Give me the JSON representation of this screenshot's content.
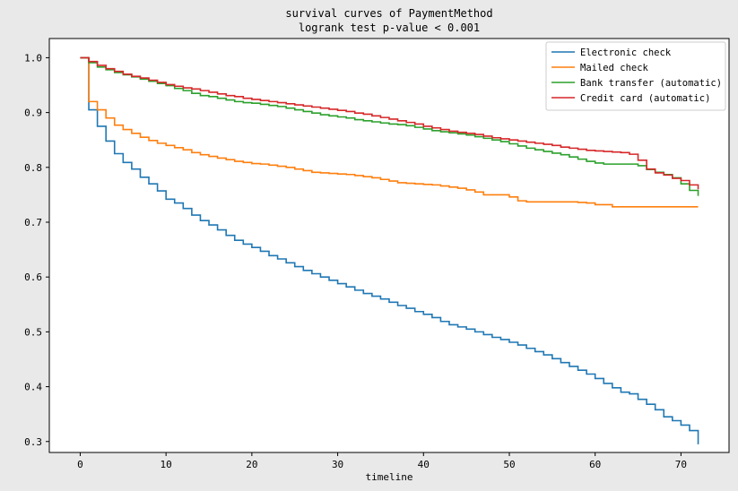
{
  "chart_data": {
    "type": "line",
    "step": true,
    "title": "survival curves of PaymentMethod",
    "subtitle": "logrank test p-value < 0.001",
    "xlabel": "timeline",
    "ylabel": "",
    "xlim": [
      -3.6,
      75.6
    ],
    "ylim": [
      0.28,
      1.035
    ],
    "xticks": [
      0,
      10,
      20,
      30,
      40,
      50,
      60,
      70
    ],
    "yticks": [
      0.3,
      0.4,
      0.5,
      0.6,
      0.7,
      0.8,
      0.9,
      1.0
    ],
    "xtick_labels": [
      "0",
      "10",
      "20",
      "30",
      "40",
      "50",
      "60",
      "70"
    ],
    "ytick_labels": [
      "0.3",
      "0.4",
      "0.5",
      "0.6",
      "0.7",
      "0.8",
      "0.9",
      "1.0"
    ],
    "grid": false,
    "legend_position": "top-right",
    "series": [
      {
        "name": "Electronic check",
        "color": "#1f77b4",
        "x": [
          0,
          1,
          2,
          3,
          4,
          5,
          6,
          7,
          8,
          9,
          10,
          11,
          12,
          13,
          14,
          15,
          16,
          17,
          18,
          19,
          20,
          21,
          22,
          23,
          24,
          25,
          26,
          27,
          28,
          29,
          30,
          31,
          32,
          33,
          34,
          35,
          36,
          37,
          38,
          39,
          40,
          41,
          42,
          43,
          44,
          45,
          46,
          47,
          48,
          49,
          50,
          51,
          52,
          53,
          54,
          55,
          56,
          57,
          58,
          59,
          60,
          61,
          62,
          63,
          64,
          65,
          66,
          67,
          68,
          69,
          70,
          71,
          72
        ],
        "y": [
          1.0,
          0.905,
          0.875,
          0.848,
          0.825,
          0.809,
          0.797,
          0.782,
          0.77,
          0.757,
          0.742,
          0.735,
          0.725,
          0.713,
          0.703,
          0.695,
          0.686,
          0.676,
          0.667,
          0.66,
          0.654,
          0.647,
          0.639,
          0.633,
          0.626,
          0.619,
          0.612,
          0.606,
          0.6,
          0.594,
          0.588,
          0.582,
          0.576,
          0.57,
          0.565,
          0.56,
          0.554,
          0.548,
          0.543,
          0.537,
          0.532,
          0.526,
          0.519,
          0.513,
          0.509,
          0.505,
          0.5,
          0.495,
          0.49,
          0.486,
          0.481,
          0.476,
          0.47,
          0.464,
          0.458,
          0.451,
          0.444,
          0.437,
          0.43,
          0.423,
          0.415,
          0.406,
          0.398,
          0.39,
          0.387,
          0.377,
          0.368,
          0.358,
          0.345,
          0.338,
          0.33,
          0.32,
          0.295
        ]
      },
      {
        "name": "Mailed check",
        "color": "#ff7f0e",
        "x": [
          0,
          1,
          2,
          3,
          4,
          5,
          6,
          7,
          8,
          9,
          10,
          11,
          12,
          13,
          14,
          15,
          16,
          17,
          18,
          19,
          20,
          21,
          22,
          23,
          24,
          25,
          26,
          27,
          28,
          29,
          30,
          31,
          32,
          33,
          34,
          35,
          36,
          37,
          38,
          39,
          40,
          41,
          42,
          43,
          44,
          45,
          46,
          47,
          48,
          49,
          50,
          51,
          52,
          53,
          54,
          55,
          56,
          57,
          58,
          59,
          60,
          61,
          62,
          63,
          64,
          65,
          66,
          67,
          68,
          69,
          70,
          71,
          72
        ],
        "y": [
          1.0,
          0.92,
          0.905,
          0.89,
          0.877,
          0.869,
          0.862,
          0.855,
          0.849,
          0.844,
          0.84,
          0.836,
          0.832,
          0.827,
          0.823,
          0.82,
          0.817,
          0.814,
          0.811,
          0.809,
          0.807,
          0.806,
          0.804,
          0.802,
          0.8,
          0.797,
          0.794,
          0.791,
          0.79,
          0.789,
          0.788,
          0.787,
          0.785,
          0.783,
          0.781,
          0.778,
          0.775,
          0.772,
          0.771,
          0.77,
          0.769,
          0.768,
          0.766,
          0.764,
          0.762,
          0.759,
          0.755,
          0.75,
          0.75,
          0.75,
          0.746,
          0.739,
          0.737,
          0.737,
          0.737,
          0.737,
          0.737,
          0.737,
          0.736,
          0.735,
          0.732,
          0.732,
          0.728,
          0.728,
          0.728,
          0.728,
          0.728,
          0.728,
          0.728,
          0.728,
          0.728,
          0.728,
          0.728
        ]
      },
      {
        "name": "Bank transfer (automatic)",
        "color": "#2ca02c",
        "x": [
          0,
          1,
          2,
          3,
          4,
          5,
          6,
          7,
          8,
          9,
          10,
          11,
          12,
          13,
          14,
          15,
          16,
          17,
          18,
          19,
          20,
          21,
          22,
          23,
          24,
          25,
          26,
          27,
          28,
          29,
          30,
          31,
          32,
          33,
          34,
          35,
          36,
          37,
          38,
          39,
          40,
          41,
          42,
          43,
          44,
          45,
          46,
          47,
          48,
          49,
          50,
          51,
          52,
          53,
          54,
          55,
          56,
          57,
          58,
          59,
          60,
          61,
          62,
          63,
          64,
          65,
          66,
          67,
          68,
          69,
          70,
          71,
          72
        ],
        "y": [
          1.0,
          0.991,
          0.983,
          0.978,
          0.973,
          0.969,
          0.965,
          0.961,
          0.957,
          0.953,
          0.949,
          0.944,
          0.94,
          0.935,
          0.931,
          0.929,
          0.926,
          0.923,
          0.92,
          0.918,
          0.917,
          0.915,
          0.913,
          0.911,
          0.908,
          0.905,
          0.902,
          0.899,
          0.896,
          0.894,
          0.892,
          0.89,
          0.887,
          0.885,
          0.883,
          0.881,
          0.879,
          0.878,
          0.876,
          0.873,
          0.87,
          0.867,
          0.865,
          0.863,
          0.861,
          0.859,
          0.856,
          0.853,
          0.85,
          0.847,
          0.843,
          0.839,
          0.835,
          0.832,
          0.829,
          0.826,
          0.823,
          0.819,
          0.815,
          0.811,
          0.808,
          0.806,
          0.806,
          0.806,
          0.806,
          0.803,
          0.796,
          0.791,
          0.787,
          0.781,
          0.77,
          0.758,
          0.748
        ]
      },
      {
        "name": "Credit card (automatic)",
        "color": "#d62728",
        "x": [
          0,
          1,
          2,
          3,
          4,
          5,
          6,
          7,
          8,
          9,
          10,
          11,
          12,
          13,
          14,
          15,
          16,
          17,
          18,
          19,
          20,
          21,
          22,
          23,
          24,
          25,
          26,
          27,
          28,
          29,
          30,
          31,
          32,
          33,
          34,
          35,
          36,
          37,
          38,
          39,
          40,
          41,
          42,
          43,
          44,
          45,
          46,
          47,
          48,
          49,
          50,
          51,
          52,
          53,
          54,
          55,
          56,
          57,
          58,
          59,
          60,
          61,
          62,
          63,
          64,
          65,
          66,
          67,
          68,
          69,
          70,
          71,
          72
        ],
        "y": [
          1.0,
          0.993,
          0.986,
          0.98,
          0.975,
          0.97,
          0.966,
          0.963,
          0.959,
          0.955,
          0.951,
          0.948,
          0.945,
          0.943,
          0.94,
          0.937,
          0.934,
          0.931,
          0.929,
          0.926,
          0.924,
          0.922,
          0.92,
          0.918,
          0.916,
          0.914,
          0.912,
          0.91,
          0.908,
          0.906,
          0.904,
          0.902,
          0.899,
          0.897,
          0.894,
          0.891,
          0.888,
          0.885,
          0.882,
          0.879,
          0.875,
          0.872,
          0.869,
          0.866,
          0.864,
          0.862,
          0.86,
          0.857,
          0.854,
          0.852,
          0.85,
          0.848,
          0.846,
          0.844,
          0.842,
          0.84,
          0.837,
          0.835,
          0.833,
          0.831,
          0.83,
          0.829,
          0.828,
          0.827,
          0.824,
          0.813,
          0.797,
          0.79,
          0.786,
          0.78,
          0.776,
          0.768,
          0.76
        ]
      }
    ]
  }
}
